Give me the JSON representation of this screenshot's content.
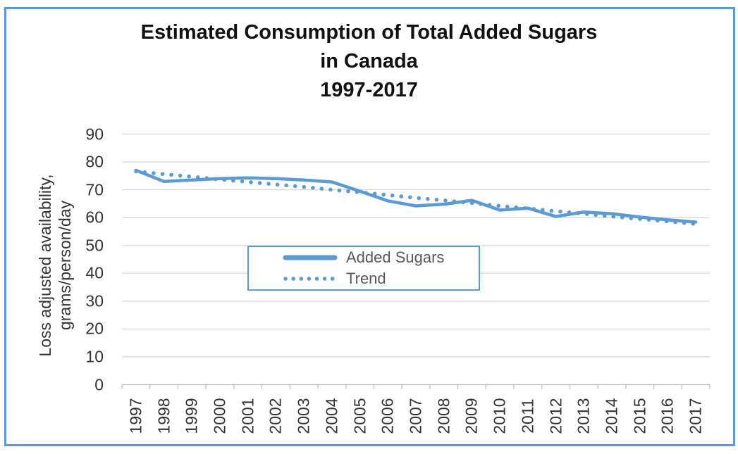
{
  "colors": {
    "accent": "#5B9BD5",
    "gridline": "#D9D9D9",
    "axis_line": "#BFBFBF",
    "tick_text": "#333333",
    "title_text": "#111111",
    "legend_text": "#595959"
  },
  "chart_data": {
    "type": "line",
    "title": "Estimated Consumption of Total Added Sugars in Canada 1997-2017",
    "title_lines": [
      "Estimated Consumption of Total Added Sugars",
      "in Canada",
      "1997-2017"
    ],
    "ylabel": "Loss adjusted availability, grams/person/day",
    "ylabel_lines": [
      "Loss adjusted availability,",
      "grams/person/day"
    ],
    "xlabel": "",
    "categories": [
      "1997",
      "1998",
      "1999",
      "2000",
      "2001",
      "2002",
      "2003",
      "2004",
      "2005",
      "2006",
      "2007",
      "2008",
      "2009",
      "2010",
      "2011",
      "2012",
      "2013",
      "2014",
      "2015",
      "2016",
      "2017"
    ],
    "y_ticks": [
      0,
      10,
      20,
      30,
      40,
      50,
      60,
      70,
      80,
      90
    ],
    "ylim": [
      0,
      90
    ],
    "grid": true,
    "legend_position": "inside-center",
    "series": [
      {
        "name": "Added Sugars",
        "style": "solid",
        "values": [
          77,
          73,
          73.5,
          74,
          74.3,
          74,
          73.5,
          72.8,
          69.5,
          66,
          64.2,
          64.8,
          66.2,
          62.7,
          63.4,
          60.4,
          62,
          61.4,
          60.2,
          59.2,
          58.4
        ]
      },
      {
        "name": "Trend",
        "style": "dotted",
        "values": [
          76.6,
          75.6,
          74.7,
          73.7,
          72.8,
          71.9,
          71.0,
          70.0,
          69.1,
          68.1,
          67.1,
          66.2,
          65.2,
          64.2,
          63.3,
          62.3,
          61.4,
          60.4,
          59.5,
          58.6,
          57.7
        ]
      }
    ]
  }
}
